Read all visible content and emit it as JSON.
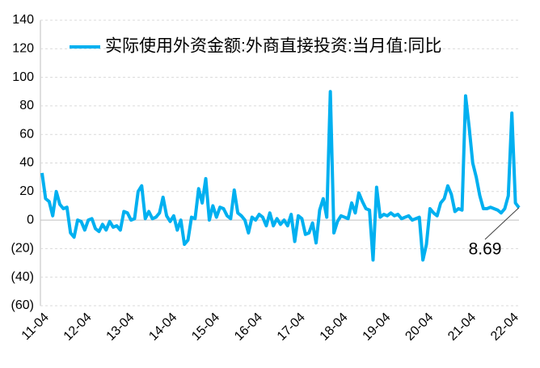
{
  "chart_data": {
    "type": "line",
    "categories": [
      "11-04",
      null,
      null,
      null,
      null,
      null,
      null,
      null,
      null,
      null,
      null,
      null,
      "12-04",
      null,
      null,
      null,
      null,
      null,
      null,
      null,
      null,
      null,
      null,
      null,
      "13-04",
      null,
      null,
      null,
      null,
      null,
      null,
      null,
      null,
      null,
      null,
      null,
      "14-04",
      null,
      null,
      null,
      null,
      null,
      null,
      null,
      null,
      null,
      null,
      null,
      "15-04",
      null,
      null,
      null,
      null,
      null,
      null,
      null,
      null,
      null,
      null,
      null,
      "16-04",
      null,
      null,
      null,
      null,
      null,
      null,
      null,
      null,
      null,
      null,
      null,
      "17-04",
      null,
      null,
      null,
      null,
      null,
      null,
      null,
      null,
      null,
      null,
      null,
      "18-04",
      null,
      null,
      null,
      null,
      null,
      null,
      null,
      null,
      null,
      null,
      null,
      "19-04",
      null,
      null,
      null,
      null,
      null,
      null,
      null,
      null,
      null,
      null,
      null,
      "20-04",
      null,
      null,
      null,
      null,
      null,
      null,
      null,
      null,
      null,
      null,
      null,
      "21-04",
      null,
      null,
      null,
      null,
      null,
      null,
      null,
      null,
      null,
      null,
      null,
      "22-04",
      null,
      null
    ],
    "series": [
      {
        "name": "实际使用外资金额:外商直接投资:当月值:同比",
        "color": "#00b0f0",
        "values": [
          33,
          15,
          13,
          3,
          20,
          11,
          8,
          9,
          -9,
          -12,
          0,
          -1,
          -7,
          0,
          1,
          -6,
          -8,
          -3,
          -7,
          -1,
          -5,
          -4,
          -7,
          6,
          5,
          0,
          1,
          20,
          24,
          1,
          6,
          1,
          2,
          5,
          16,
          3,
          -1,
          3,
          -7,
          0,
          -17,
          -14,
          2,
          1,
          22,
          12,
          29,
          0,
          10,
          2,
          9,
          8,
          3,
          1,
          21,
          5,
          3,
          0,
          -9,
          2,
          0,
          4,
          2,
          -4,
          5,
          -4,
          1,
          -3,
          0,
          -4,
          4,
          -15,
          3,
          1,
          -10,
          -9,
          -2,
          -16,
          7,
          15,
          2,
          90,
          -9,
          -1,
          3,
          2,
          1,
          12,
          5,
          19,
          13,
          8,
          7,
          -28,
          23,
          2,
          4,
          3,
          5,
          3,
          4,
          1,
          2,
          3,
          0,
          1,
          2,
          -28,
          -17,
          8,
          5,
          3,
          12,
          15,
          24,
          18,
          6,
          8,
          7,
          87,
          65,
          40,
          30,
          17,
          8,
          8,
          9,
          8,
          7,
          5,
          8,
          17,
          75,
          12,
          8.69
        ]
      }
    ],
    "annotation": "8.69",
    "annotation_color": "#c00000",
    "ylim": [
      -60,
      140
    ],
    "yticks": [
      {
        "value": -60,
        "label": "(60)"
      },
      {
        "value": -40,
        "label": "(40)"
      },
      {
        "value": -20,
        "label": "(20)"
      },
      0,
      20,
      40,
      60,
      80,
      100,
      120,
      140
    ],
    "negative_tick_color": "#c00000",
    "grid": true
  }
}
